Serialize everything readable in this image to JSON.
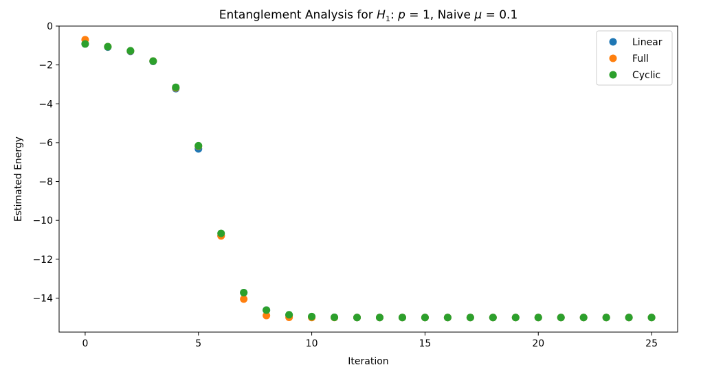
{
  "chart_data": {
    "type": "scatter",
    "title_prefix": "Entanglement Analysis for ",
    "title_h": "H",
    "title_h_sub": "1",
    "title_suffix_p": ": ",
    "title_p_var": "p",
    "title_p_eq": " = 1, Naive ",
    "title_mu_var": "μ",
    "title_mu_eq": " = 0.1",
    "xlabel": "Iteration",
    "ylabel": "Estimated Energy",
    "xlim": [
      -1.15,
      26.15
    ],
    "ylim": [
      -15.75,
      0
    ],
    "xticks": [
      0,
      5,
      10,
      15,
      20,
      25
    ],
    "yticks": [
      0,
      -2,
      -4,
      -6,
      -8,
      -10,
      -12,
      -14
    ],
    "ytick_labels": [
      "0",
      "−2",
      "−4",
      "−6",
      "−8",
      "−10",
      "−12",
      "−14"
    ],
    "grid": false,
    "legend_position": "top-right",
    "x": [
      0,
      1,
      2,
      3,
      4,
      5,
      6,
      7,
      8,
      9,
      10,
      11,
      12,
      13,
      14,
      15,
      16,
      17,
      18,
      19,
      20,
      21,
      22,
      23,
      24,
      25
    ],
    "series": [
      {
        "name": "Linear",
        "color": "#1f77b4",
        "values": [
          -0.92,
          -1.08,
          -1.3,
          -1.82,
          -3.22,
          -6.32,
          -10.78,
          -13.72,
          -14.62,
          -14.88,
          -14.96,
          -14.99,
          -15.0,
          -15.0,
          -15.0,
          -15.0,
          -15.0,
          -15.0,
          -15.0,
          -15.0,
          -15.0,
          -15.0,
          -15.0,
          -15.0,
          -15.0,
          -15.0
        ]
      },
      {
        "name": "Full",
        "color": "#ff7f0e",
        "values": [
          -0.7,
          -1.06,
          -1.28,
          -1.8,
          -3.18,
          -6.18,
          -10.8,
          -14.05,
          -14.9,
          -14.99,
          -15.0,
          -15.0,
          -15.0,
          -15.0,
          -15.0,
          -15.0,
          -15.0,
          -15.0,
          -15.0,
          -15.0,
          -15.0,
          -15.0,
          -15.0,
          -15.0,
          -15.0,
          -15.0
        ]
      },
      {
        "name": "Cyclic",
        "color": "#2ca02c",
        "values": [
          -0.92,
          -1.06,
          -1.27,
          -1.8,
          -3.15,
          -6.16,
          -10.67,
          -13.72,
          -14.62,
          -14.86,
          -14.95,
          -14.99,
          -15.0,
          -15.0,
          -15.0,
          -15.0,
          -15.0,
          -15.0,
          -15.0,
          -15.0,
          -15.0,
          -15.0,
          -15.0,
          -15.0,
          -15.0,
          -15.0
        ]
      }
    ]
  }
}
